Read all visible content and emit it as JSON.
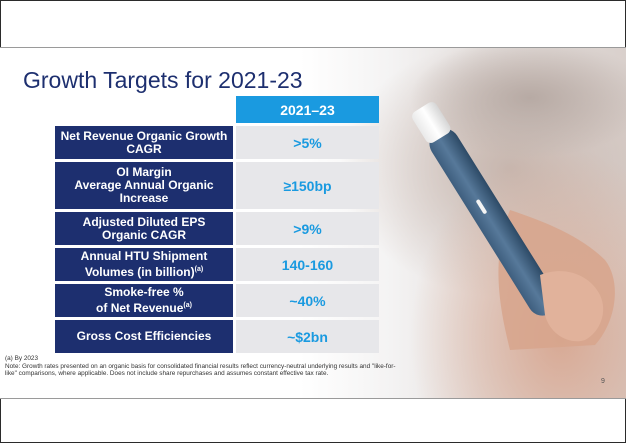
{
  "slide": {
    "title": "Growth Targets for 2021-23",
    "column_header": "2021–23",
    "page_number": "9",
    "targets": [
      {
        "metric_lines": [
          "Net Revenue Organic Growth",
          "CAGR"
        ],
        "value": ">5%"
      },
      {
        "metric_lines": [
          "OI Margin",
          "Average Annual Organic",
          "Increase"
        ],
        "value": "≥150bp"
      },
      {
        "metric_lines": [
          "Adjusted Diluted EPS",
          "Organic CAGR"
        ],
        "value": ">9%"
      },
      {
        "metric_lines": [
          "Annual HTU Shipment",
          "Volumes  (in billion)"
        ],
        "footnote_mark": "(a)",
        "value": "140-160"
      },
      {
        "metric_lines": [
          "Smoke-free %",
          "of Net Revenue"
        ],
        "footnote_mark": "(a)",
        "value": "~40%"
      },
      {
        "metric_lines": [
          "Gross Cost Efficiencies"
        ],
        "value": "~$2bn"
      }
    ],
    "footnotes": {
      "a": "(a) By 2023",
      "note": "Note: Growth rates presented on an organic basis for consolidated financial results reflect currency-neutral underlying results and \"like-for-like\" comparisons, where applicable. Does not include share repurchases and assumes constant effective tax rate."
    }
  },
  "colors": {
    "navy": "#1d2f6f",
    "accent_blue": "#1a9ae0",
    "value_bg": "#e7e7ea"
  }
}
